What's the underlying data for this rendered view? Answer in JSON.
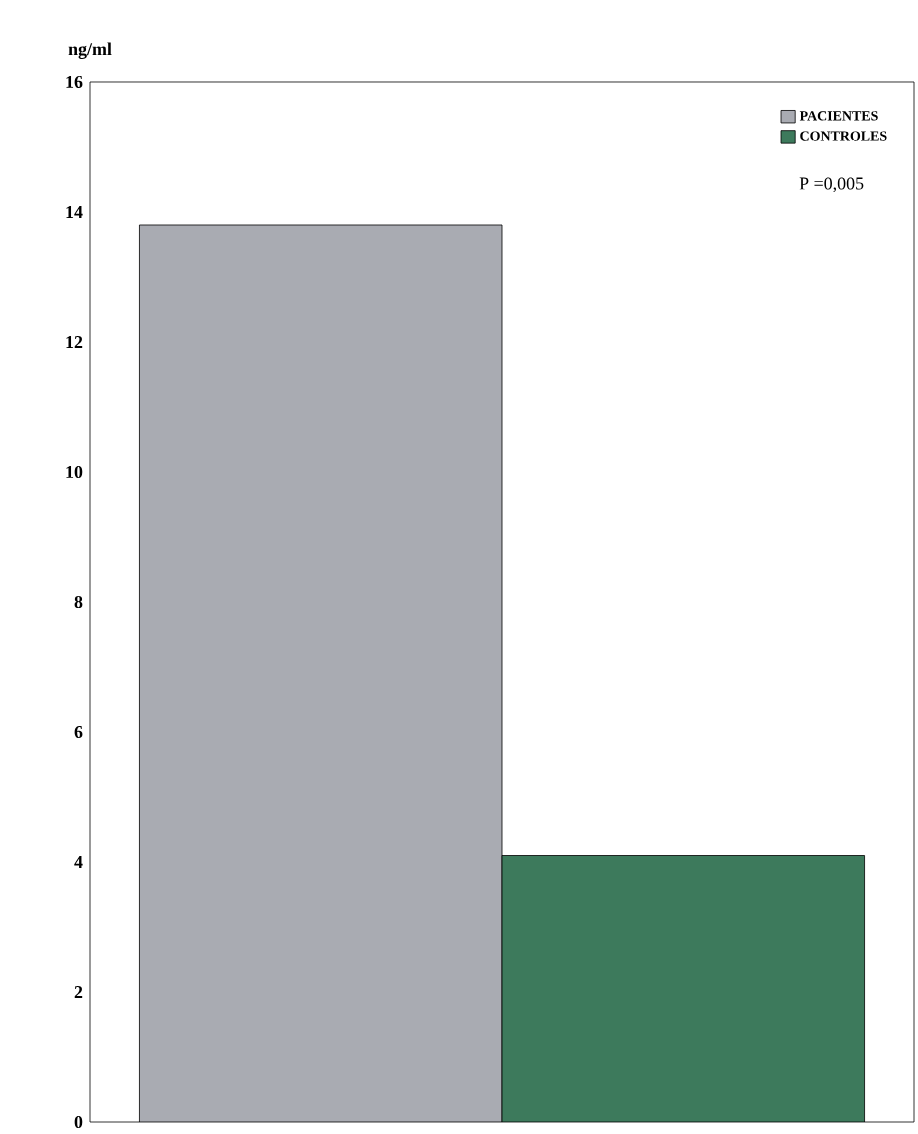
{
  "chart_data": {
    "type": "bar",
    "ylabel": "ng/ml",
    "categories": [
      null
    ],
    "series": [
      {
        "name": "PACIENTES",
        "color": "#a9abb2",
        "values": [
          13.8
        ]
      },
      {
        "name": "CONTROLES",
        "color": "#3d7a5c",
        "values": [
          4.1
        ]
      }
    ],
    "ylim": [
      0,
      16
    ],
    "yticks": [
      0,
      2,
      4,
      6,
      8,
      10,
      12,
      14,
      16
    ],
    "legend": "top right",
    "annotations": [
      "P =0,005"
    ]
  }
}
